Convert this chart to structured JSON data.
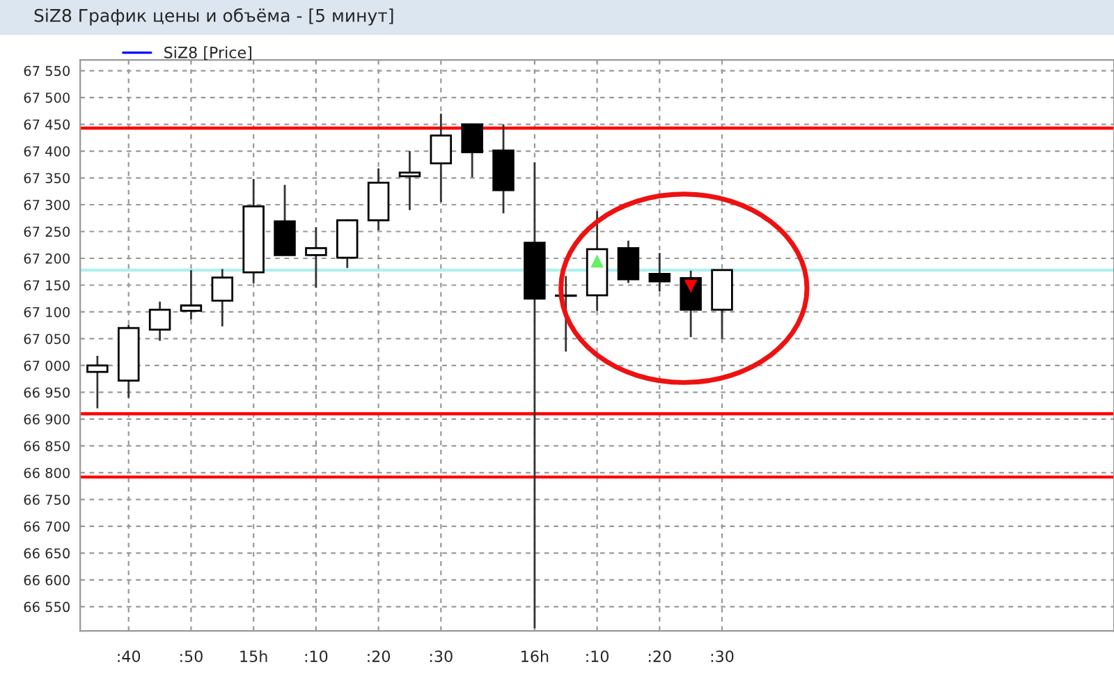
{
  "chart_data": {
    "type": "candlestick",
    "title": "SiZ8 График цены и объёма - [5 минут]",
    "categories": [
      null,
      ":40",
      null,
      ":50",
      null,
      "15h",
      null,
      ":10",
      null,
      ":20",
      null,
      ":30",
      null,
      null,
      "16h",
      null,
      ":10",
      null,
      ":20",
      null,
      ":30",
      null,
      null,
      null,
      null,
      null,
      null,
      null,
      null,
      null,
      null,
      null,
      null
    ],
    "series": [
      {
        "type": "candlestick",
        "name": "SiZ8 [Price]",
        "color": "#0000ff",
        "ohlc": [
          [
            66988,
            67018,
            66920,
            67000
          ],
          [
            66972,
            67076,
            66940,
            67070
          ],
          [
            67067,
            67119,
            67046,
            67104
          ],
          [
            67102,
            67178,
            67086,
            67112
          ],
          [
            67121,
            67180,
            67073,
            67164
          ],
          [
            67174,
            67348,
            67154,
            67297
          ],
          [
            67269,
            67337,
            67206,
            67206
          ],
          [
            67206,
            67258,
            67145,
            67219
          ],
          [
            67201,
            67273,
            67182,
            67271
          ],
          [
            67271,
            67368,
            67252,
            67341
          ],
          [
            67353,
            67400,
            67290,
            67360
          ],
          [
            67377,
            67470,
            67305,
            67429
          ],
          [
            67450,
            67450,
            67351,
            67398
          ],
          [
            67401,
            67450,
            67284,
            67327
          ],
          [
            67229,
            67379,
            66510,
            67125
          ],
          [
            67130,
            67167,
            67026,
            67130
          ],
          [
            67131,
            67288,
            67102,
            67217
          ],
          [
            67219,
            67233,
            67154,
            67161
          ],
          [
            67171,
            67210,
            67138,
            67157
          ],
          [
            67163,
            67177,
            67053,
            67104
          ],
          [
            67104,
            67178,
            67050,
            67178
          ],
          null,
          null,
          null,
          null,
          null,
          null,
          null,
          null,
          null,
          null,
          null,
          null
        ],
        "colors": [
          "#ffffff",
          "#ffffff",
          "#ffffff",
          "#ffffff",
          "#ffffff",
          "#ffffff",
          "#000000",
          "#ffffff",
          "#ffffff",
          "#ffffff",
          "#ffffff",
          "#ffffff",
          "#000000",
          "#000000",
          "#000000",
          "#000000",
          "#ffffff",
          "#000000",
          "#000000",
          "#000000",
          "#ffffff",
          null,
          null,
          null,
          null,
          null,
          null,
          null,
          null,
          null,
          null,
          null,
          null
        ]
      },
      {
        "type": "scatter",
        "color": "#66ee66",
        "marker": "triangle",
        "values": [
          null,
          null,
          null,
          null,
          null,
          null,
          null,
          null,
          null,
          null,
          null,
          null,
          null,
          null,
          null,
          null,
          67195,
          null,
          null,
          null,
          null,
          null,
          null,
          null,
          null,
          null,
          null,
          null,
          null,
          null,
          null,
          null,
          null
        ]
      },
      {
        "type": "scatter",
        "color": "#ff0000",
        "marker": "triangle_down",
        "values": [
          null,
          null,
          null,
          null,
          null,
          null,
          null,
          null,
          null,
          null,
          null,
          null,
          null,
          null,
          null,
          null,
          null,
          null,
          null,
          67148,
          null,
          null,
          null,
          null,
          null,
          null,
          null,
          null,
          null,
          null,
          null,
          null,
          null
        ]
      }
    ],
    "ylim": [
      66505,
      67570
    ],
    "yticks": [
      {
        "value": 66550,
        "label": "66 550"
      },
      {
        "value": 66600,
        "label": "66 600"
      },
      {
        "value": 66650,
        "label": "66 650"
      },
      {
        "value": 66700,
        "label": "66 700"
      },
      {
        "value": 66750,
        "label": "66 750"
      },
      {
        "value": 66800,
        "label": "66 800"
      },
      {
        "value": 66850,
        "label": "66 850"
      },
      {
        "value": 66900,
        "label": "66 900"
      },
      {
        "value": 66950,
        "label": "66 950"
      },
      {
        "value": 67000,
        "label": "67 000"
      },
      {
        "value": 67050,
        "label": "67 050"
      },
      {
        "value": 67100,
        "label": "67 100"
      },
      {
        "value": 67150,
        "label": "67 150"
      },
      {
        "value": 67200,
        "label": "67 200"
      },
      {
        "value": 67250,
        "label": "67 250"
      },
      {
        "value": 67300,
        "label": "67 300"
      },
      {
        "value": 67350,
        "label": "67 350"
      },
      {
        "value": 67400,
        "label": "67 400"
      },
      {
        "value": 67450,
        "label": "67 450"
      },
      {
        "value": 67500,
        "label": "67 500"
      },
      {
        "value": 67550,
        "label": "67 550"
      }
    ],
    "ref_lines": [
      {
        "axis": "y",
        "value": 67443,
        "color": "#ff0000"
      },
      {
        "axis": "y",
        "value": 66910,
        "color": "#ff0000"
      },
      {
        "axis": "y",
        "value": 66792,
        "color": "#ff0000"
      },
      {
        "axis": "y",
        "value": 67178,
        "color": "#b0f0f0"
      }
    ],
    "grid": true,
    "legend": "top left"
  }
}
